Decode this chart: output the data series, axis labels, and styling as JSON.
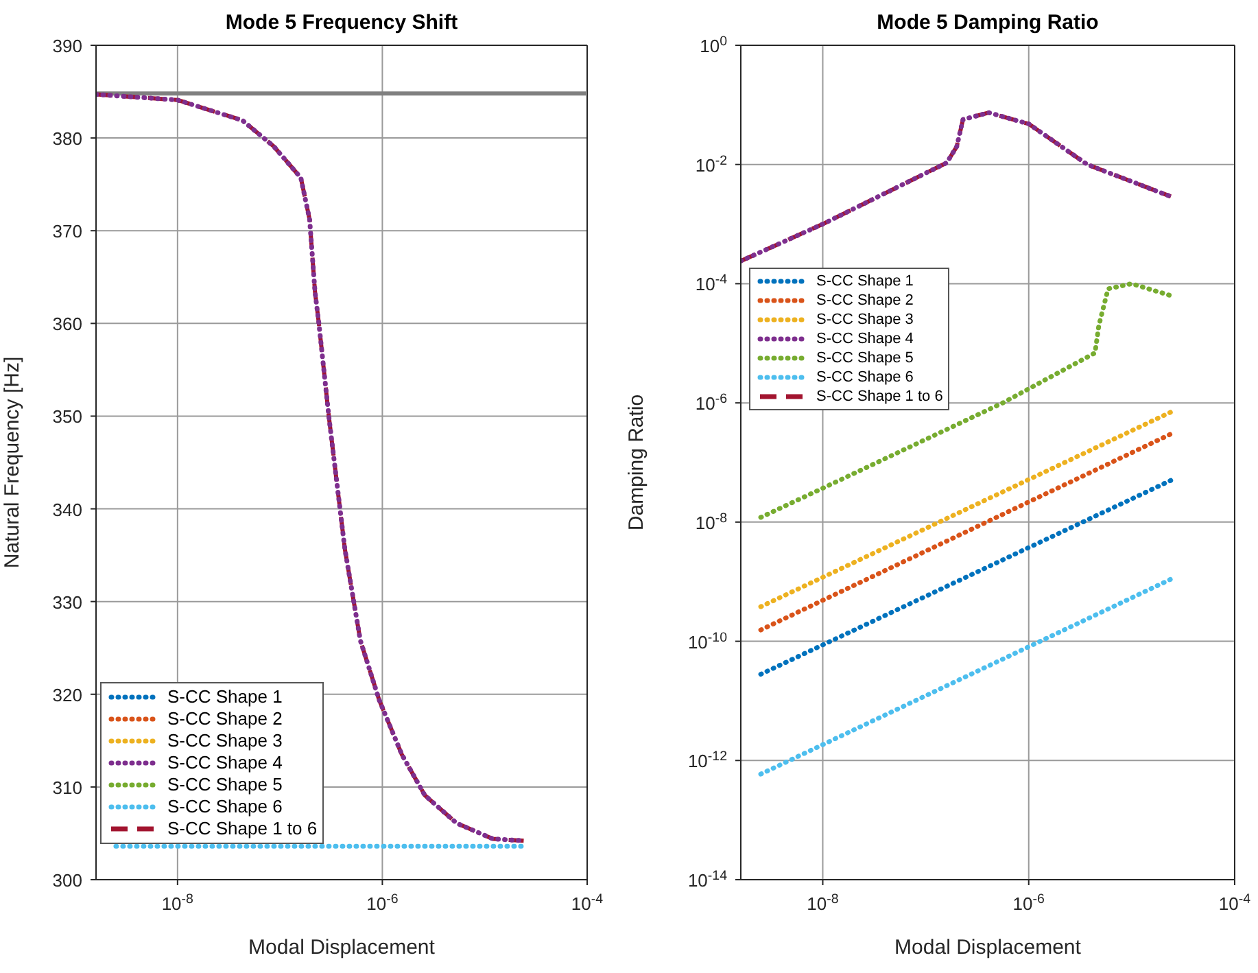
{
  "chart_data": [
    {
      "type": "line",
      "title": "Mode 5 Frequency Shift",
      "xlabel": "Modal Displacement",
      "ylabel": "Natural Frequency [Hz]",
      "log": "x",
      "grid": true,
      "legend": "bottom left",
      "xlim": [
        1.6e-09,
        0.0001
      ],
      "xticks": [
        {
          "value": 1e-08,
          "label": "10$^{-8}$"
        },
        {
          "value": 1e-06,
          "label": "10$^{-6}$"
        },
        {
          "value": 0.0001,
          "label": "10$^{-4}$"
        }
      ],
      "ylim": [
        300,
        390
      ],
      "yticks": [
        300,
        310,
        320,
        330,
        340,
        350,
        360,
        370,
        380,
        390
      ],
      "ref_lines": [
        {
          "axis": "y",
          "value": 384.8,
          "color": "#808080"
        }
      ],
      "series": [
        {
          "name": "S-CC Shape 1",
          "color": "#0072bd",
          "line_style": "dotted"
        },
        {
          "name": "S-CC Shape 2",
          "color": "#d95319",
          "line_style": "dotted"
        },
        {
          "name": "S-CC Shape 3",
          "color": "#edb120",
          "line_style": "dotted"
        },
        {
          "name": "S-CC Shape 4",
          "color": "#7e2f8e",
          "line_style": "dotted",
          "x": [
            1.6e-09,
            1e-08,
            4.3e-08,
            8.7e-08,
            1.6e-07,
            1.95e-07,
            2.2e-07,
            2.4e-07,
            3e-07,
            4.3e-07,
            6.1e-07,
            9.3e-07,
            1.55e-06,
            2.6e-06,
            5.3e-06,
            1.2e-05,
            2.4e-05
          ],
          "values": [
            384.7,
            384.1,
            381.9,
            379.1,
            375.7,
            371.2,
            363.4,
            360,
            350,
            335.7,
            325.8,
            319.4,
            313.5,
            309.1,
            306.1,
            304.4,
            304.2
          ]
        },
        {
          "name": "S-CC Shape 5",
          "color": "#77ac30",
          "line_style": "dotted"
        },
        {
          "name": "S-CC Shape 6",
          "color": "#4dbeee",
          "line_style": "dotted",
          "x": [
            2.5e-09,
            2.4e-05
          ],
          "values": [
            303.6,
            303.6
          ]
        },
        {
          "name": "S-CC Shape 1 to 6",
          "color": "#a2142f",
          "line_style": "dashed",
          "x": [
            1.6e-09,
            1e-08,
            4.3e-08,
            8.7e-08,
            1.6e-07,
            1.95e-07,
            2.2e-07,
            2.4e-07,
            3e-07,
            4.3e-07,
            6.1e-07,
            9.3e-07,
            1.55e-06,
            2.6e-06,
            5.3e-06,
            1.2e-05,
            2.4e-05
          ],
          "values": [
            384.7,
            384.1,
            381.9,
            379.1,
            375.7,
            371.2,
            363.4,
            360,
            350,
            335.7,
            325.8,
            319.4,
            313.5,
            309.1,
            306.1,
            304.4,
            304.2
          ]
        }
      ]
    },
    {
      "type": "line",
      "title": "Mode 5 Damping Ratio",
      "xlabel": "Modal Displacement",
      "ylabel": "Damping Ratio",
      "log": "xy",
      "grid": true,
      "legend": "left",
      "xlim": [
        1.6e-09,
        0.0001
      ],
      "xticks": [
        {
          "value": 1e-08,
          "label": "10$^{-8}$"
        },
        {
          "value": 1e-06,
          "label": "10$^{-6}$"
        },
        {
          "value": 0.0001,
          "label": "10$^{-4}$"
        }
      ],
      "ylim": [
        1e-14,
        1
      ],
      "yticks": [
        {
          "value": 1e-14,
          "label": "10$^{-14}$"
        },
        {
          "value": 1e-12,
          "label": "10$^{-12}$"
        },
        {
          "value": 1e-10,
          "label": "10$^{-10}$"
        },
        {
          "value": 1e-08,
          "label": "10$^{-8}$"
        },
        {
          "value": 1e-06,
          "label": "10$^{-6}$"
        },
        {
          "value": 0.0001,
          "label": "10$^{-4}$"
        },
        {
          "value": 0.01,
          "label": "10$^{-2}$"
        },
        {
          "value": 1,
          "label": "10$^{0}$"
        }
      ],
      "series": [
        {
          "name": "S-CC Shape 1",
          "color": "#0072bd",
          "line_style": "dotted",
          "x": [
            2.5e-09,
            2.4e-05
          ],
          "values": [
            2.8e-11,
            5e-08
          ]
        },
        {
          "name": "S-CC Shape 2",
          "color": "#d95319",
          "line_style": "dotted",
          "x": [
            2.5e-09,
            2.4e-05
          ],
          "values": [
            1.55e-10,
            3e-07
          ]
        },
        {
          "name": "S-CC Shape 3",
          "color": "#edb120",
          "line_style": "dotted",
          "x": [
            2.5e-09,
            2.4e-05
          ],
          "values": [
            3.8e-10,
            7e-07
          ]
        },
        {
          "name": "S-CC Shape 4",
          "color": "#7e2f8e",
          "line_style": "dotted",
          "x": [
            1.6e-09,
            1e-08,
            1.6e-07,
            2e-07,
            2.3e-07,
            4.1e-07,
            1e-06,
            3.7e-06,
            2.4e-05
          ],
          "values": [
            0.00024,
            0.001,
            0.0107,
            0.02,
            0.057,
            0.074,
            0.048,
            0.01,
            0.0029
          ]
        },
        {
          "name": "S-CC Shape 5",
          "color": "#77ac30",
          "line_style": "dotted",
          "x": [
            2.5e-09,
            1e-08,
            5.6e-07,
            4.4e-06,
            4.8e-06,
            5.9e-06,
            1e-05,
            2.4e-05
          ],
          "values": [
            1.2e-08,
            3.7e-08,
            1e-06,
            6.9e-06,
            2e-05,
            8.2e-05,
            0.0001,
            6.3e-05
          ]
        },
        {
          "name": "S-CC Shape 6",
          "color": "#4dbeee",
          "line_style": "dotted",
          "x": [
            2.5e-09,
            2.4e-05
          ],
          "values": [
            5.9e-13,
            1.1e-09
          ]
        },
        {
          "name": "S-CC Shape 1 to 6",
          "color": "#a2142f",
          "line_style": "dashed",
          "x": [
            1.6e-09,
            1e-08,
            1.6e-07,
            2e-07,
            2.3e-07,
            4.1e-07,
            1e-06,
            3.7e-06,
            2.4e-05
          ],
          "values": [
            0.00024,
            0.001,
            0.0107,
            0.02,
            0.057,
            0.074,
            0.048,
            0.01,
            0.0029
          ]
        }
      ]
    }
  ]
}
